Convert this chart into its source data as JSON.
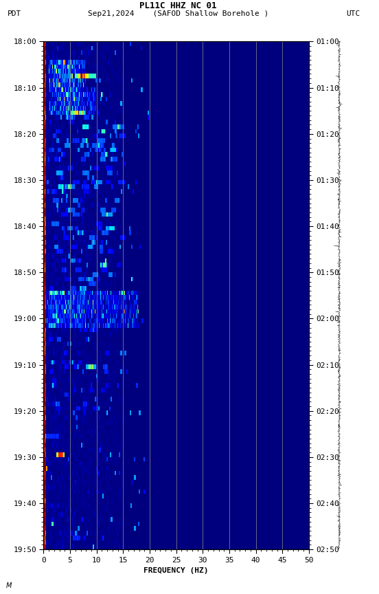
{
  "title_line1": "PL11C HHZ NC 01",
  "title_line2_pdt": "PDT",
  "title_line2_date": "Sep21,2024",
  "title_line2_station": "(SAFOD Shallow Borehole )",
  "title_line2_utc": "UTC",
  "xlabel": "FREQUENCY (HZ)",
  "freq_min": 0,
  "freq_max": 50,
  "freq_ticks": [
    0,
    5,
    10,
    15,
    20,
    25,
    30,
    35,
    40,
    45,
    50
  ],
  "freq_gridlines": [
    5,
    10,
    15,
    20,
    25,
    30,
    35,
    40,
    45
  ],
  "pdt_ticks": [
    "18:00",
    "18:10",
    "18:20",
    "18:30",
    "18:40",
    "18:50",
    "19:00",
    "19:10",
    "19:20",
    "19:30",
    "19:40",
    "19:50"
  ],
  "utc_ticks": [
    "01:00",
    "01:10",
    "01:20",
    "01:30",
    "01:40",
    "01:50",
    "02:00",
    "02:10",
    "02:20",
    "02:30",
    "02:40",
    "02:50"
  ],
  "colormap": "jet",
  "figsize": [
    5.52,
    8.64
  ],
  "dpi": 100,
  "font_family": "monospace",
  "gridline_color": "#888888",
  "noise_seed": 42,
  "n_time": 110,
  "n_freq": 500
}
